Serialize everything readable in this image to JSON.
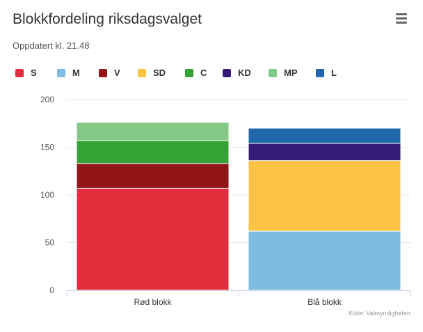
{
  "header": {
    "title": "Blokkfordeling riksdagsvalget",
    "subtitle": "Oppdatert kl. 21.48",
    "menu_icon": "hamburger-menu-icon"
  },
  "credit": "Kilde: Valmyndigheten",
  "chart_data": {
    "type": "bar",
    "stacked": true,
    "title": "Blokkfordeling riksdagsvalget",
    "subtitle": "Oppdatert kl. 21.48",
    "xlabel": "",
    "ylabel": "",
    "categories": [
      "Rød blokk",
      "Blå blokk"
    ],
    "ylim": [
      0,
      200
    ],
    "yticks": [
      0,
      50,
      100,
      150,
      200
    ],
    "grid": true,
    "legend_position": "top-left",
    "series": [
      {
        "name": "S",
        "color": "#e22d3c",
        "values": [
          107,
          0
        ]
      },
      {
        "name": "M",
        "color": "#7dbde2",
        "values": [
          0,
          62
        ]
      },
      {
        "name": "V",
        "color": "#921617",
        "values": [
          26,
          0
        ]
      },
      {
        "name": "SD",
        "color": "#fec244",
        "values": [
          0,
          74
        ]
      },
      {
        "name": "C",
        "color": "#34a234",
        "values": [
          24,
          0
        ]
      },
      {
        "name": "KD",
        "color": "#361a79",
        "values": [
          0,
          18
        ]
      },
      {
        "name": "MP",
        "color": "#83c985",
        "values": [
          19,
          0
        ]
      },
      {
        "name": "L",
        "color": "#2067ab",
        "values": [
          0,
          16
        ]
      }
    ]
  }
}
